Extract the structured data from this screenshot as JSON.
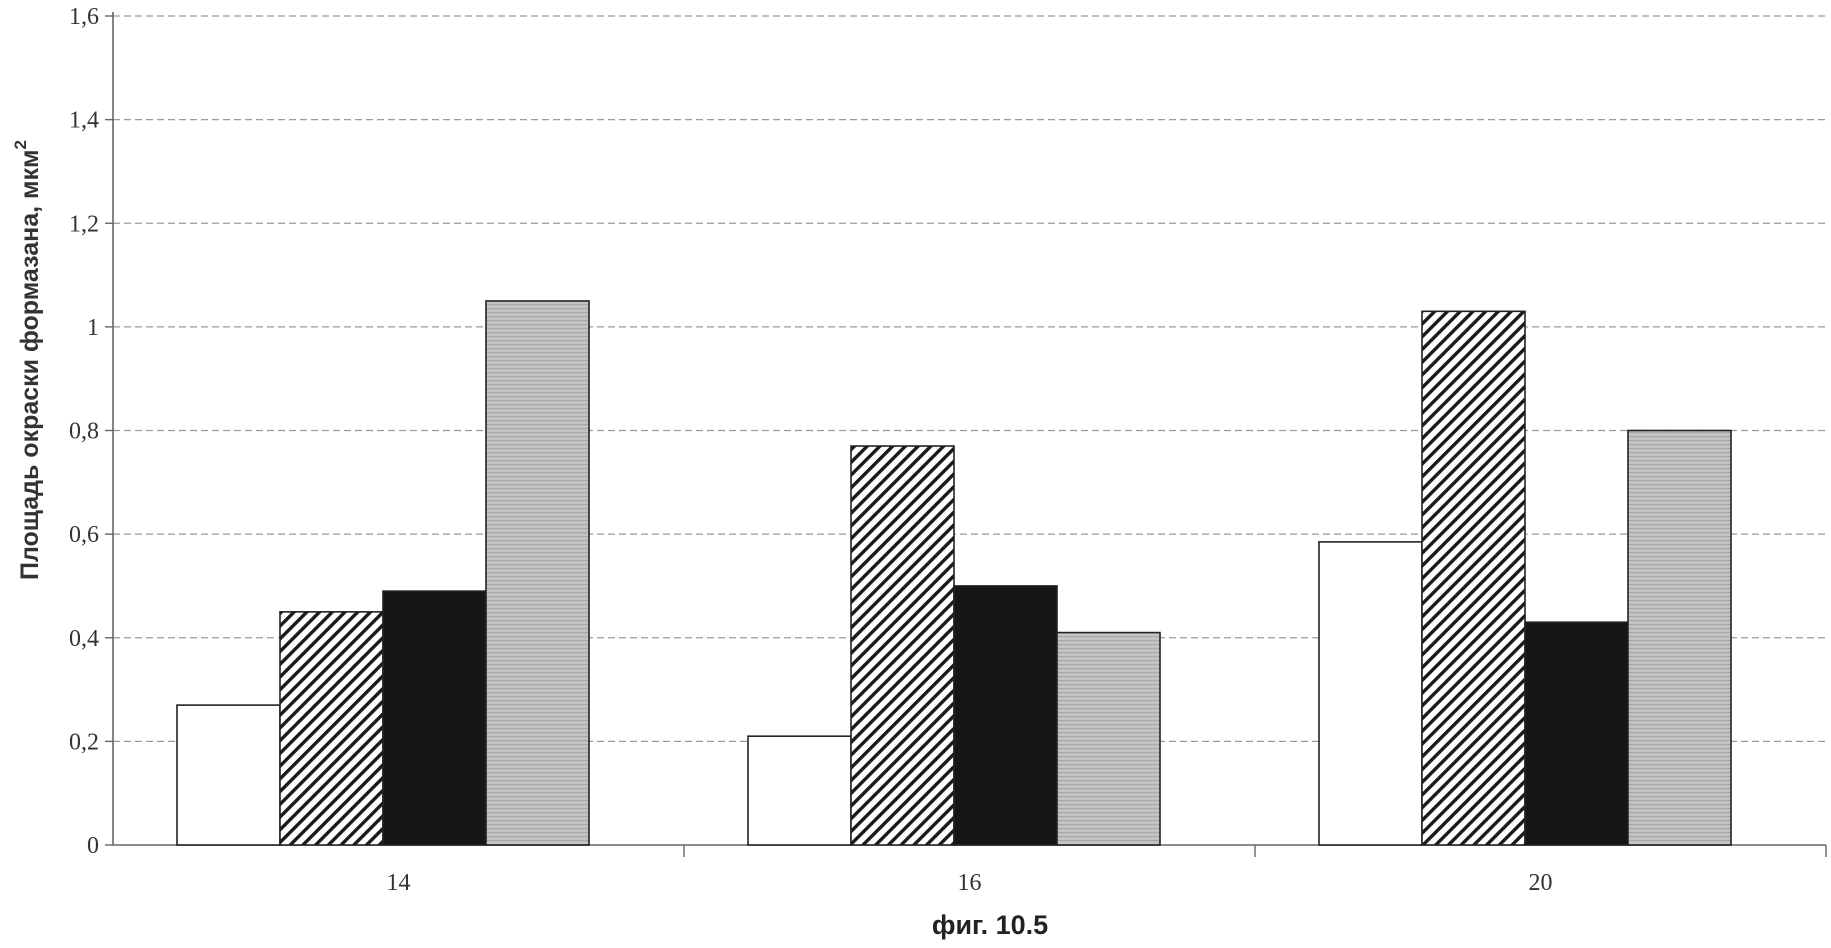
{
  "chart_data": {
    "type": "bar",
    "categories": [
      "14",
      "16",
      "20"
    ],
    "series": [
      {
        "values": [
          0.27,
          0.21,
          0.585
        ],
        "fill": "white"
      },
      {
        "values": [
          0.45,
          0.77,
          1.03
        ],
        "fill": "diagonal-hatch"
      },
      {
        "values": [
          0.49,
          0.5,
          0.43
        ],
        "fill": "black"
      },
      {
        "values": [
          1.05,
          0.41,
          0.8
        ],
        "fill": "gray-stipple"
      }
    ],
    "ylabel": "Площадь окраски формазана, мкм",
    "ylabel_superscript": "2",
    "ylim": [
      0,
      1.6
    ],
    "yticks": [
      "0",
      "0,2",
      "0,4",
      "0,6",
      "0,8",
      "1",
      "1,2",
      "1,4",
      "1,6"
    ],
    "grid": true,
    "legend": false
  },
  "caption": "фиг. 10.5",
  "colors": {
    "axis": "#666666",
    "grid": "#9a9a9a",
    "bar_outline": "#222222",
    "black_bar": "#161616",
    "gray_bar": "#bdbdbd"
  }
}
